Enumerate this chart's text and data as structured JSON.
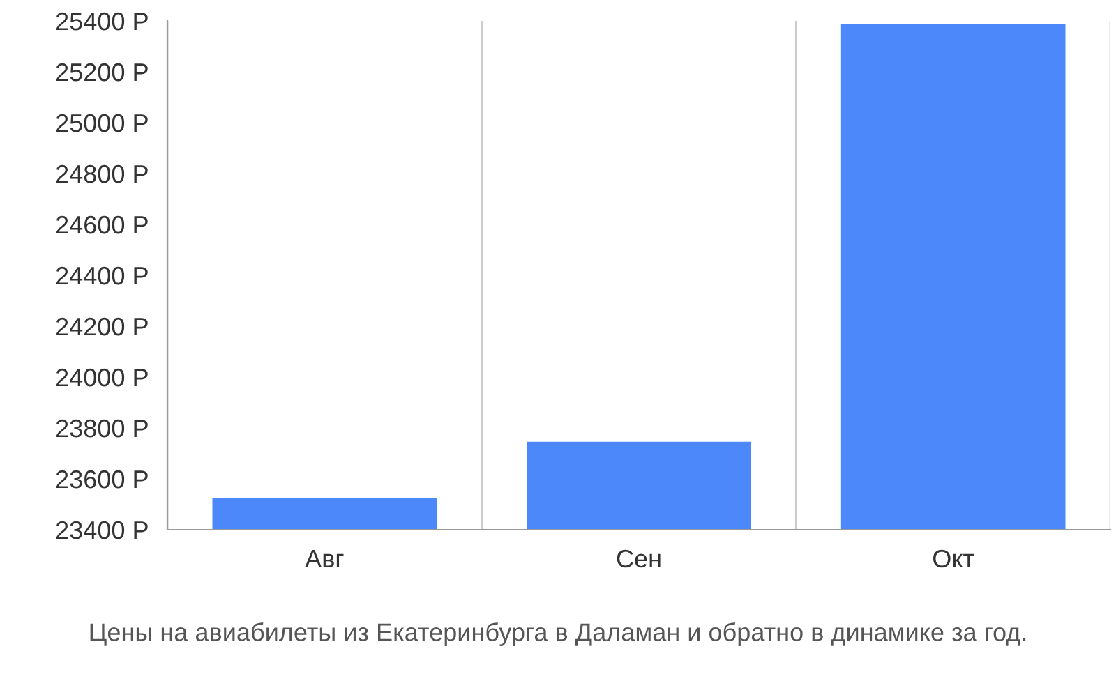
{
  "chart_data": {
    "type": "bar",
    "categories": [
      "Авг",
      "Сен",
      "Окт"
    ],
    "values": [
      23530,
      23750,
      25390
    ],
    "color": "#4d88fa",
    "ylim": [
      23400,
      25400
    ],
    "yticks": [
      {
        "value": 23400,
        "label": "23400 Р"
      },
      {
        "value": 23600,
        "label": "23600 Р"
      },
      {
        "value": 23800,
        "label": "23800 Р"
      },
      {
        "value": 24000,
        "label": "24000 Р"
      },
      {
        "value": 24200,
        "label": "24200 Р"
      },
      {
        "value": 24400,
        "label": "24400 Р"
      },
      {
        "value": 24600,
        "label": "24600 Р"
      },
      {
        "value": 24800,
        "label": "24800 Р"
      },
      {
        "value": 25000,
        "label": "25000 Р"
      },
      {
        "value": 25200,
        "label": "25200 Р"
      },
      {
        "value": 25400,
        "label": "25400 Р"
      }
    ],
    "grid": "x",
    "annotations": [
      "Цены на авиабилеты из Екатеринбурга в Даламан и обратно в динамике за год."
    ]
  }
}
